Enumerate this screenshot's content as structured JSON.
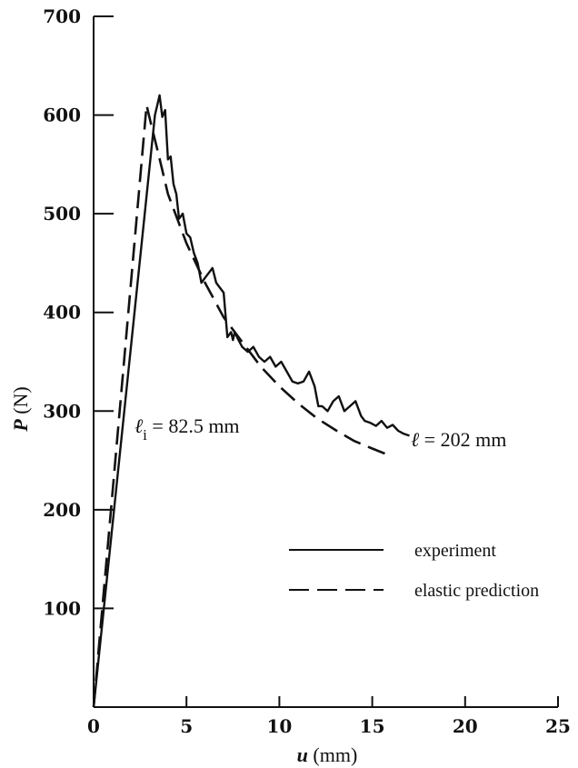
{
  "chart_data": {
    "type": "line",
    "xlabel": {
      "var": "u",
      "unit": " (mm)"
    },
    "ylabel": {
      "var": "P",
      "unit": " (N)"
    },
    "xlim": [
      0,
      25
    ],
    "ylim": [
      0,
      700
    ],
    "x_ticks": [
      0,
      5,
      10,
      15,
      20,
      25
    ],
    "y_ticks": [
      100,
      200,
      300,
      400,
      500,
      600,
      700
    ],
    "grid": false,
    "legend_position": "bottom-right",
    "series": [
      {
        "name": "experiment",
        "style": "solid",
        "color": "#111111",
        "x": [
          0,
          3.3,
          3.55,
          3.7,
          3.85,
          4.0,
          4.15,
          4.3,
          4.45,
          4.6,
          4.8,
          5.0,
          5.2,
          5.4,
          5.6,
          5.8,
          6.0,
          6.2,
          6.4,
          6.6,
          6.8,
          7.0,
          7.2,
          7.4,
          7.5,
          7.6,
          7.8,
          8.0,
          8.3,
          8.6,
          8.9,
          9.2,
          9.5,
          9.8,
          10.1,
          10.4,
          10.7,
          11.0,
          11.3,
          11.6,
          11.9,
          12.1,
          12.3,
          12.6,
          12.9,
          13.2,
          13.5,
          13.8,
          14.1,
          14.4,
          14.6,
          14.9,
          15.2,
          15.5,
          15.8,
          16.1,
          16.4,
          16.7,
          17.0
        ],
        "values": [
          0,
          600,
          620,
          598,
          605,
          555,
          558,
          530,
          520,
          495,
          500,
          480,
          476,
          460,
          450,
          430,
          435,
          440,
          445,
          430,
          425,
          420,
          375,
          380,
          372,
          380,
          372,
          365,
          360,
          365,
          355,
          350,
          355,
          345,
          350,
          340,
          330,
          328,
          330,
          340,
          325,
          305,
          305,
          300,
          310,
          315,
          300,
          305,
          310,
          295,
          290,
          288,
          285,
          290,
          283,
          286,
          280,
          277,
          275
        ]
      },
      {
        "name": "elastic prediction",
        "style": "dashed",
        "color": "#111111",
        "x": [
          0,
          2.85,
          3.1,
          3.5,
          4.0,
          5.0,
          6.0,
          7.0,
          8.0,
          9.0,
          10.0,
          11.0,
          12.0,
          13.0,
          14.0,
          15.0,
          15.8
        ],
        "values": [
          0,
          610,
          590,
          560,
          520,
          470,
          430,
          395,
          370,
          345,
          325,
          308,
          293,
          281,
          270,
          262,
          256
        ]
      }
    ],
    "annotations": [
      {
        "text_var": "ℓ",
        "text_sub": "i",
        "text_rest": " = 82.5 mm"
      },
      {
        "text_var": "ℓ",
        "text_rest": " = 202 mm"
      }
    ],
    "legend": [
      {
        "label": "experiment",
        "style": "solid"
      },
      {
        "label": "elastic prediction",
        "style": "dashed"
      }
    ]
  }
}
